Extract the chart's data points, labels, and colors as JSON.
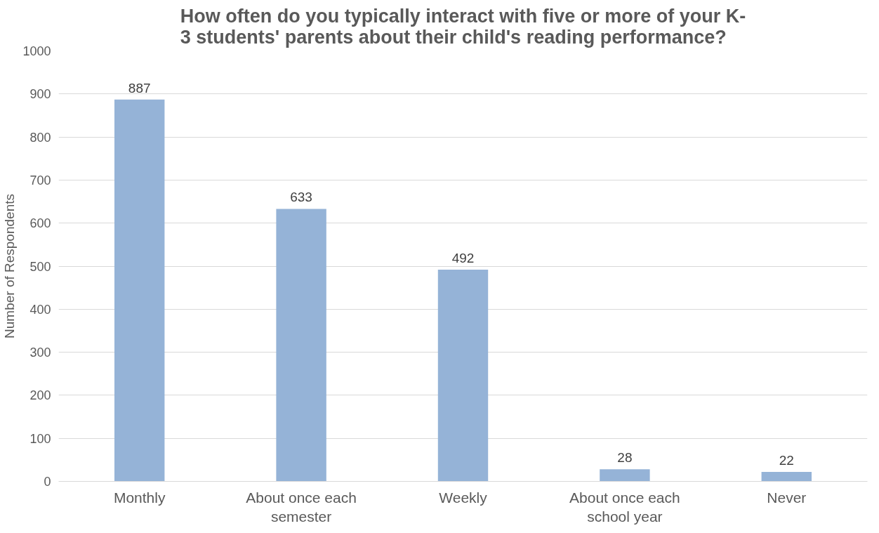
{
  "chart_data": {
    "type": "bar",
    "title": "How often do you typically interact with five or more of your K-\n3 students' parents about their child's reading performance?",
    "ylabel": "Number of Respondents",
    "categories": [
      "Monthly",
      "About once each semester",
      "Weekly",
      "About once each school year",
      "Never"
    ],
    "values": [
      887,
      633,
      492,
      28,
      22
    ],
    "color": "#95b3d7",
    "ylim": [
      0,
      1000
    ],
    "yticks": [
      0,
      100,
      200,
      300,
      400,
      500,
      600,
      700,
      800,
      900,
      1000
    ],
    "grid": "y",
    "data_labels": true
  }
}
